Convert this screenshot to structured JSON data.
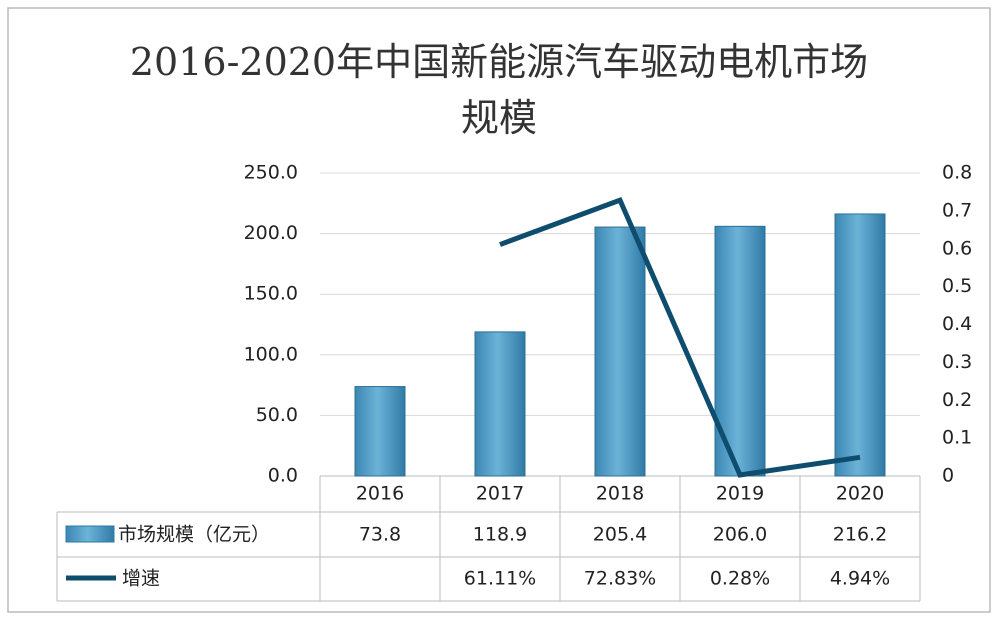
{
  "chart_data": {
    "type": "bar",
    "title": "2016-2020年中国新能源汽车驱动电机市场规模",
    "categories": [
      "2016",
      "2017",
      "2018",
      "2019",
      "2020"
    ],
    "series": [
      {
        "name": "市场规模（亿元）",
        "type": "bar",
        "color": "#4a97c2",
        "values": [
          73.8,
          118.9,
          205.4,
          206.0,
          216.2
        ],
        "value_labels": [
          "73.8",
          "118.9",
          "205.4",
          "206.0",
          "216.2"
        ]
      },
      {
        "name": "增速",
        "type": "line",
        "axis": "y2",
        "color": "#0e4d6e",
        "values": [
          null,
          0.6111,
          0.7283,
          0.0028,
          0.0494
        ],
        "value_labels": [
          null,
          "61.11%",
          "72.83%",
          "0.28%",
          "4.94%"
        ]
      }
    ],
    "ylim": [
      0,
      250
    ],
    "yticks": [
      {
        "value": 0,
        "label": "0.0"
      },
      {
        "value": 50,
        "label": "50.0"
      },
      {
        "value": 100,
        "label": "100.0"
      },
      {
        "value": 150,
        "label": "150.0"
      },
      {
        "value": 200,
        "label": "200.0"
      },
      {
        "value": 250,
        "label": "250.0"
      }
    ],
    "y2lim": [
      0,
      0.8
    ],
    "y2ticks": [
      0,
      0.1,
      0.2,
      0.3,
      0.4,
      0.5,
      0.6,
      0.7,
      0.8
    ],
    "grid": true
  }
}
